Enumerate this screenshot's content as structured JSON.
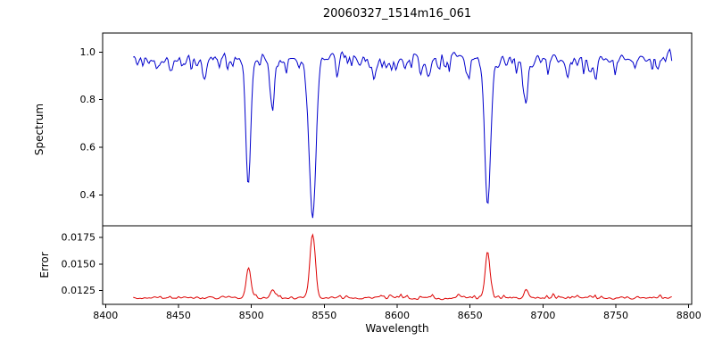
{
  "chart_data": {
    "type": "line",
    "title": "20060327_1514m16_061",
    "xlabel": "Wavelength",
    "xlim": [
      8398,
      8802
    ],
    "xticks": [
      8400,
      8450,
      8500,
      8550,
      8600,
      8650,
      8700,
      8750,
      8800
    ],
    "x_range": [
      8419,
      8789
    ],
    "sample_step": 0.72,
    "noise_seed": 42,
    "grid": false,
    "legend": "none",
    "background_color": "#ffffff",
    "panels": [
      {
        "name": "spectrum",
        "ylabel": "Spectrum",
        "color": "#0000cc",
        "ylim": [
          0.27,
          1.08
        ],
        "yticks": [
          0.4,
          0.6,
          0.8,
          1.0
        ],
        "ytick_labels": [
          "0.4",
          "0.6",
          "0.8",
          "1.0"
        ],
        "continuum": 0.97,
        "noise_amplitude": 0.035,
        "absorption_lines": [
          {
            "center": 8498.0,
            "depth": 0.52,
            "width": 1.6
          },
          {
            "center": 8542.1,
            "depth": 0.66,
            "width": 2.2
          },
          {
            "center": 8662.1,
            "depth": 0.63,
            "width": 2.0
          },
          {
            "center": 8514.5,
            "depth": 0.19,
            "width": 1.1
          },
          {
            "center": 8688.5,
            "depth": 0.21,
            "width": 1.1
          },
          {
            "center": 8468.0,
            "depth": 0.1,
            "width": 1.0
          },
          {
            "center": 8585.0,
            "depth": 0.08,
            "width": 1.0
          },
          {
            "center": 8621.0,
            "depth": 0.09,
            "width": 1.0
          },
          {
            "center": 8648.0,
            "depth": 0.08,
            "width": 1.0
          },
          {
            "center": 8717.0,
            "depth": 0.09,
            "width": 1.0
          },
          {
            "center": 8736.0,
            "depth": 0.08,
            "width": 1.0
          }
        ]
      },
      {
        "name": "error",
        "ylabel": "Error",
        "color": "#dd0000",
        "ylim": [
          0.0112,
          0.0186
        ],
        "yticks": [
          0.0125,
          0.015,
          0.0175
        ],
        "ytick_labels": [
          "0.0125",
          "0.0150",
          "0.0175"
        ],
        "baseline": 0.0118,
        "noise_amplitude": 0.00012,
        "peaks": [
          {
            "center": 8498.0,
            "height": 0.003,
            "width": 1.5
          },
          {
            "center": 8542.1,
            "height": 0.0062,
            "width": 1.8
          },
          {
            "center": 8662.1,
            "height": 0.0045,
            "width": 1.6
          },
          {
            "center": 8514.5,
            "height": 0.0008,
            "width": 1.2
          },
          {
            "center": 8688.5,
            "height": 0.0008,
            "width": 1.2
          }
        ]
      }
    ]
  }
}
